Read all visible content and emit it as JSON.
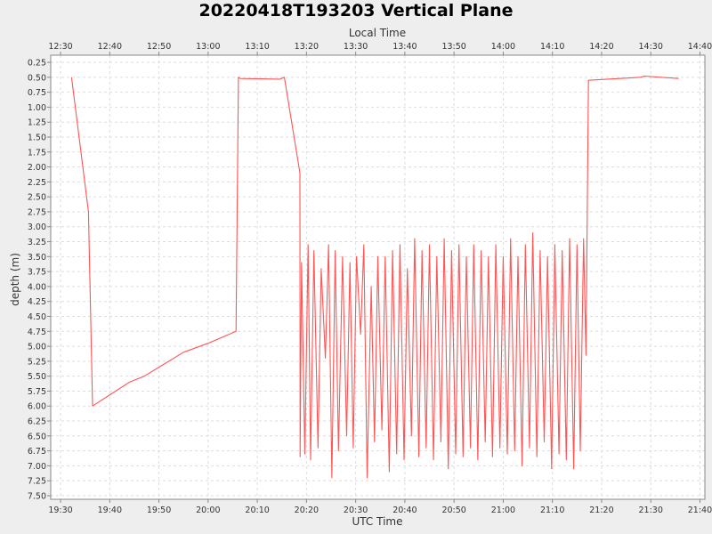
{
  "chart_data": {
    "type": "line",
    "title": "20220418T193203 Vertical Plane",
    "xlabel_bottom": "UTC Time",
    "xlabel_top": "Local Time",
    "ylabel": "depth (m)",
    "y_inverted": true,
    "ylim": [
      7.5,
      0.25
    ],
    "xlim_utc": [
      "19:28",
      "19:41"
    ],
    "grid": true,
    "colors": {
      "series": "#ff5555",
      "plot_bg": "#ffffff",
      "grid": "#dddddd",
      "page_bg": "#eeeeee"
    },
    "utc_ticks": [
      "19:30",
      "19:40",
      "19:50",
      "20:00",
      "20:10",
      "20:20",
      "20:30",
      "20:40",
      "20:50",
      "21:00",
      "21:10",
      "21:20",
      "21:30",
      "21:40"
    ],
    "local_ticks": [
      "12:30",
      "12:40",
      "12:50",
      "13:00",
      "13:10",
      "13:20",
      "13:30",
      "13:40",
      "13:50",
      "14:00",
      "14:10",
      "14:20",
      "14:30",
      "14:40"
    ],
    "y_ticks": [
      "0.25",
      "0.50",
      "0.75",
      "1.00",
      "1.25",
      "1.50",
      "1.75",
      "2.00",
      "2.25",
      "2.50",
      "2.75",
      "3.00",
      "3.25",
      "3.50",
      "3.75",
      "4.00",
      "4.25",
      "4.50",
      "4.75",
      "5.00",
      "5.25",
      "5.50",
      "5.75",
      "6.00",
      "6.25",
      "6.50",
      "6.75",
      "7.00",
      "7.25",
      "7.50"
    ],
    "series": [
      {
        "time_utc": [
          "19:32:14",
          "19:35:40",
          "19:36:30",
          "19:44:00",
          "19:47:00",
          "19:50:00",
          "19:55:00",
          "20:00:00",
          "20:05:40",
          "20:06:10",
          "20:06:30",
          "20:14:40",
          "20:15:30",
          "20:18:40",
          "20:18:42",
          "20:19:00",
          "20:19:40",
          "20:20:20",
          "20:20:50",
          "20:21:30",
          "20:22:20",
          "20:23:00",
          "20:23:50",
          "20:24:30",
          "20:25:10",
          "20:25:50",
          "20:26:30",
          "20:27:20",
          "20:28:10",
          "20:28:50",
          "20:29:30",
          "20:30:10",
          "20:31:00",
          "20:31:40",
          "20:32:20",
          "20:33:10",
          "20:33:50",
          "20:34:30",
          "20:35:20",
          "20:36:00",
          "20:36:50",
          "20:37:30",
          "20:38:20",
          "20:39:00",
          "20:39:50",
          "20:40:30",
          "20:41:20",
          "20:42:00",
          "20:42:50",
          "20:43:30",
          "20:44:20",
          "20:45:00",
          "20:45:50",
          "20:46:30",
          "20:47:20",
          "20:48:00",
          "20:48:50",
          "20:49:30",
          "20:50:20",
          "20:51:00",
          "20:51:50",
          "20:52:30",
          "20:53:20",
          "20:54:00",
          "20:54:50",
          "20:55:30",
          "20:56:20",
          "20:57:00",
          "20:57:50",
          "20:58:30",
          "20:59:20",
          "21:00:00",
          "21:00:50",
          "21:01:30",
          "21:02:20",
          "21:03:00",
          "21:03:50",
          "21:04:30",
          "21:05:20",
          "21:06:00",
          "21:06:50",
          "21:07:30",
          "21:08:20",
          "21:09:00",
          "21:09:50",
          "21:10:30",
          "21:11:20",
          "21:12:00",
          "21:12:50",
          "21:13:30",
          "21:14:20",
          "21:15:00",
          "21:15:40",
          "21:16:20",
          "21:16:50",
          "21:17:20",
          "21:28:00",
          "21:28:40",
          "21:35:40"
        ],
        "depth_m": [
          0.5,
          2.75,
          6.0,
          5.6,
          5.5,
          5.35,
          5.1,
          4.95,
          4.75,
          0.5,
          0.52,
          0.53,
          0.5,
          2.1,
          6.85,
          3.6,
          6.8,
          3.3,
          6.9,
          3.4,
          6.7,
          3.7,
          5.2,
          3.3,
          7.2,
          3.4,
          6.75,
          3.5,
          6.5,
          3.6,
          6.7,
          3.5,
          4.8,
          3.3,
          7.2,
          4.0,
          6.6,
          3.5,
          6.4,
          3.5,
          7.1,
          3.4,
          6.8,
          3.3,
          6.9,
          3.7,
          6.5,
          3.2,
          6.85,
          3.4,
          6.7,
          3.3,
          6.9,
          3.5,
          6.6,
          3.2,
          7.05,
          3.4,
          6.8,
          3.3,
          6.85,
          3.5,
          6.7,
          3.3,
          6.9,
          3.4,
          6.6,
          3.5,
          6.85,
          3.3,
          6.7,
          3.5,
          6.8,
          3.2,
          6.75,
          3.5,
          7.0,
          3.3,
          6.7,
          3.1,
          6.85,
          3.4,
          6.6,
          3.5,
          7.05,
          3.3,
          6.8,
          3.4,
          6.9,
          3.2,
          7.05,
          3.3,
          6.75,
          3.2,
          5.15,
          0.55,
          0.5,
          0.48,
          0.52
        ]
      }
    ]
  }
}
